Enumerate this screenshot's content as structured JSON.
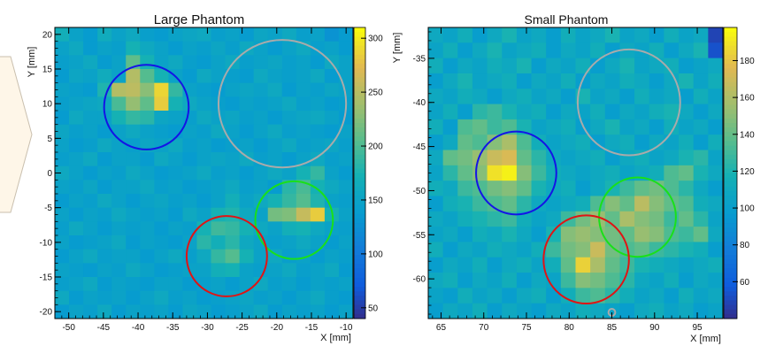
{
  "chart_data": [
    {
      "type": "heatmap",
      "title": "Large Phantom",
      "xlabel": "X [mm]",
      "ylabel": "Y [mm]",
      "xlim": [
        -52,
        -9
      ],
      "ylim": [
        -21,
        21
      ],
      "xticks": [
        "-50",
        "-45",
        "-40",
        "-35",
        "-30",
        "-25",
        "-20",
        "-15",
        "-10"
      ],
      "xtick_values": [
        -50,
        -45,
        -40,
        -35,
        -30,
        -25,
        -20,
        -15,
        -10
      ],
      "yticks": [
        "20",
        "15",
        "10",
        "5",
        "0",
        "-5",
        "-10",
        "-15",
        "-20"
      ],
      "ytick_values": [
        20,
        15,
        10,
        5,
        0,
        -5,
        -10,
        -15,
        -20
      ],
      "color_range": [
        40,
        310
      ],
      "colorbar_ticks": [
        "300",
        "250",
        "200",
        "150",
        "100",
        "50"
      ],
      "colorbar_tick_values": [
        300,
        250,
        200,
        150,
        100,
        50
      ],
      "grid_x_range": [
        -52,
        -9
      ],
      "grid_y_range": [
        -21,
        21
      ],
      "grid": [
        [
          170,
          150,
          140,
          165,
          150,
          160,
          145,
          140,
          150,
          155,
          160,
          145,
          150,
          140,
          155,
          150,
          160,
          145,
          150,
          130,
          140
        ],
        [
          150,
          160,
          140,
          150,
          145,
          175,
          160,
          150,
          140,
          150,
          145,
          155,
          145,
          160,
          150,
          140,
          150,
          160,
          145,
          150,
          140
        ],
        [
          145,
          150,
          160,
          140,
          150,
          210,
          175,
          150,
          160,
          145,
          140,
          150,
          160,
          145,
          150,
          155,
          145,
          150,
          140,
          160,
          150
        ],
        [
          140,
          155,
          150,
          165,
          150,
          250,
          205,
          175,
          150,
          140,
          160,
          150,
          145,
          140,
          160,
          150,
          145,
          150,
          160,
          140,
          150
        ],
        [
          150,
          145,
          140,
          180,
          250,
          255,
          230,
          290,
          190,
          150,
          145,
          140,
          150,
          155,
          150,
          160,
          140,
          150,
          145,
          155,
          150
        ],
        [
          145,
          150,
          155,
          160,
          200,
          235,
          210,
          285,
          175,
          160,
          150,
          145,
          140,
          150,
          145,
          150,
          160,
          145,
          150,
          140,
          145
        ],
        [
          140,
          160,
          150,
          150,
          175,
          190,
          185,
          155,
          150,
          145,
          160,
          150,
          155,
          145,
          150,
          140,
          150,
          155,
          160,
          150,
          140
        ],
        [
          155,
          145,
          150,
          140,
          150,
          160,
          150,
          145,
          140,
          150,
          145,
          160,
          150,
          140,
          150,
          160,
          145,
          150,
          145,
          140,
          150
        ],
        [
          150,
          140,
          145,
          160,
          150,
          145,
          155,
          150,
          160,
          145,
          150,
          140,
          145,
          150,
          140,
          150,
          160,
          145,
          150,
          155,
          145
        ],
        [
          145,
          150,
          160,
          140,
          150,
          150,
          140,
          160,
          150,
          140,
          150,
          155,
          150,
          160,
          145,
          150,
          140,
          150,
          160,
          145,
          150
        ],
        [
          160,
          150,
          140,
          150,
          145,
          160,
          150,
          140,
          145,
          150,
          160,
          145,
          150,
          140,
          150,
          160,
          150,
          175,
          190,
          150,
          140
        ],
        [
          150,
          145,
          155,
          140,
          150,
          150,
          160,
          145,
          150,
          140,
          145,
          150,
          160,
          145,
          150,
          140,
          185,
          200,
          175,
          160,
          150
        ],
        [
          140,
          150,
          145,
          160,
          150,
          140,
          150,
          155,
          145,
          150,
          140,
          150,
          170,
          150,
          160,
          175,
          190,
          205,
          180,
          150,
          145
        ],
        [
          150,
          140,
          150,
          145,
          160,
          150,
          145,
          150,
          140,
          160,
          150,
          175,
          180,
          160,
          150,
          220,
          225,
          260,
          285,
          175,
          150
        ],
        [
          145,
          160,
          150,
          140,
          150,
          145,
          150,
          140,
          150,
          145,
          175,
          195,
          190,
          175,
          160,
          150,
          170,
          175,
          160,
          150,
          145
        ],
        [
          150,
          140,
          145,
          150,
          160,
          140,
          150,
          145,
          140,
          150,
          185,
          170,
          185,
          160,
          150,
          145,
          150,
          160,
          150,
          140,
          150
        ],
        [
          140,
          150,
          160,
          145,
          150,
          150,
          140,
          150,
          160,
          145,
          160,
          190,
          205,
          175,
          150,
          160,
          145,
          150,
          140,
          150,
          145
        ],
        [
          150,
          145,
          140,
          150,
          145,
          160,
          150,
          140,
          145,
          150,
          150,
          170,
          175,
          150,
          145,
          150,
          160,
          145,
          150,
          160,
          140
        ],
        [
          145,
          150,
          160,
          140,
          150,
          145,
          140,
          150,
          150,
          140,
          145,
          150,
          140,
          150,
          160,
          145,
          150,
          140,
          150,
          145,
          150
        ],
        [
          160,
          140,
          150,
          145,
          150,
          140,
          150,
          160,
          145,
          150,
          140,
          145,
          150,
          155,
          145,
          150,
          140,
          150,
          160,
          145,
          140
        ],
        [
          140,
          150,
          145,
          160,
          140,
          150,
          145,
          150,
          140,
          155,
          150,
          140,
          145,
          150,
          160,
          140,
          150,
          145,
          150,
          140,
          150
        ]
      ],
      "circles": [
        {
          "cx": -38.8,
          "cy": 9.5,
          "r": 6.1,
          "color": "#1414e6"
        },
        {
          "cx": -19.2,
          "cy": 10.0,
          "r": 9.2,
          "color": "#aaaaaa"
        },
        {
          "cx": -17.5,
          "cy": -6.8,
          "r": 5.6,
          "color": "#19e019"
        },
        {
          "cx": -27.2,
          "cy": -12.0,
          "r": 5.8,
          "color": "#e01414"
        }
      ]
    },
    {
      "type": "heatmap",
      "title": "Small Phantom",
      "xlabel": "X [mm]",
      "ylabel": "Y [mm]",
      "xlim": [
        63.5,
        98
      ],
      "ylim": [
        -64.5,
        -31.5
      ],
      "xticks": [
        "65",
        "70",
        "75",
        "80",
        "85",
        "90",
        "95"
      ],
      "xtick_values": [
        65,
        70,
        75,
        80,
        85,
        90,
        95
      ],
      "yticks": [
        "-35",
        "-40",
        "-45",
        "-50",
        "-55",
        "-60"
      ],
      "ytick_values": [
        -35,
        -40,
        -45,
        -50,
        -55,
        -60
      ],
      "color_range": [
        40,
        198
      ],
      "colorbar_ticks": [
        "180",
        "160",
        "140",
        "120",
        "100",
        "80",
        "60"
      ],
      "colorbar_tick_values": [
        180,
        160,
        140,
        120,
        100,
        80,
        60
      ],
      "grid_x_range": [
        63.5,
        98
      ],
      "grid_y_range": [
        -64.5,
        -31.5
      ],
      "grid": [
        [
          110,
          105,
          115,
          100,
          110,
          120,
          105,
          110,
          100,
          115,
          105,
          110,
          120,
          105,
          110,
          100,
          115,
          105,
          110,
          50
        ],
        [
          105,
          115,
          100,
          110,
          120,
          105,
          110,
          115,
          100,
          110,
          105,
          115,
          100,
          110,
          105,
          115,
          100,
          110,
          120,
          55
        ],
        [
          115,
          100,
          110,
          105,
          115,
          110,
          120,
          100,
          110,
          105,
          115,
          100,
          110,
          120,
          105,
          110,
          115,
          100,
          105,
          110
        ],
        [
          100,
          110,
          120,
          105,
          110,
          115,
          100,
          110,
          105,
          115,
          100,
          110,
          105,
          115,
          110,
          100,
          110,
          120,
          105,
          115
        ],
        [
          110,
          105,
          115,
          110,
          100,
          110,
          115,
          105,
          110,
          100,
          120,
          105,
          110,
          100,
          115,
          105,
          110,
          100,
          115,
          105
        ],
        [
          105,
          115,
          100,
          125,
          130,
          120,
          110,
          115,
          100,
          110,
          105,
          115,
          100,
          110,
          105,
          115,
          120,
          110,
          100,
          110
        ],
        [
          115,
          100,
          135,
          140,
          130,
          135,
          120,
          105,
          110,
          115,
          100,
          110,
          120,
          105,
          110,
          100,
          115,
          105,
          110,
          100
        ],
        [
          100,
          110,
          140,
          135,
          150,
          160,
          135,
          115,
          105,
          110,
          115,
          100,
          110,
          115,
          100,
          110,
          105,
          115,
          100,
          115
        ],
        [
          110,
          140,
          145,
          155,
          170,
          175,
          140,
          125,
          110,
          105,
          110,
          115,
          100,
          110,
          115,
          105,
          110,
          120,
          125,
          105
        ],
        [
          105,
          125,
          140,
          150,
          190,
          195,
          150,
          130,
          115,
          110,
          105,
          110,
          115,
          105,
          110,
          115,
          135,
          140,
          120,
          110
        ],
        [
          115,
          110,
          130,
          135,
          145,
          150,
          140,
          120,
          110,
          115,
          100,
          110,
          120,
          130,
          140,
          145,
          135,
          125,
          110,
          100
        ],
        [
          100,
          115,
          120,
          130,
          135,
          140,
          125,
          110,
          105,
          110,
          115,
          135,
          150,
          140,
          165,
          150,
          140,
          135,
          115,
          110
        ],
        [
          110,
          105,
          115,
          120,
          125,
          130,
          115,
          105,
          110,
          130,
          145,
          155,
          140,
          160,
          150,
          145,
          130,
          140,
          125,
          105
        ],
        [
          105,
          110,
          100,
          115,
          110,
          120,
          110,
          100,
          120,
          150,
          155,
          150,
          145,
          140,
          155,
          150,
          135,
          130,
          140,
          110
        ],
        [
          115,
          100,
          110,
          105,
          115,
          110,
          105,
          115,
          130,
          145,
          150,
          170,
          145,
          135,
          140,
          130,
          125,
          120,
          115,
          100
        ],
        [
          100,
          110,
          105,
          115,
          100,
          110,
          115,
          105,
          115,
          140,
          185,
          160,
          140,
          130,
          120,
          115,
          110,
          105,
          110,
          115
        ],
        [
          110,
          115,
          100,
          110,
          105,
          115,
          100,
          110,
          105,
          130,
          150,
          145,
          135,
          125,
          110,
          105,
          115,
          100,
          110,
          105
        ],
        [
          105,
          100,
          115,
          105,
          110,
          100,
          110,
          115,
          100,
          115,
          130,
          135,
          125,
          115,
          105,
          110,
          100,
          115,
          105,
          110
        ],
        [
          100,
          110,
          105,
          115,
          100,
          110,
          105,
          100,
          110,
          105,
          115,
          110,
          105,
          100,
          110,
          115,
          105,
          110,
          100,
          105
        ]
      ],
      "circles": [
        {
          "cx": 73.8,
          "cy": -48.0,
          "r": 4.7,
          "color": "#1414e6"
        },
        {
          "cx": 87.0,
          "cy": -40.0,
          "r": 6.0,
          "color": "#aaaaaa"
        },
        {
          "cx": 88.0,
          "cy": -53.0,
          "r": 4.5,
          "color": "#19e019"
        },
        {
          "cx": 82.0,
          "cy": -57.8,
          "r": 5.0,
          "color": "#e01414"
        },
        {
          "cx": 85.0,
          "cy": -63.8,
          "r": 0.4,
          "color": "#aaaaaa"
        }
      ]
    }
  ]
}
